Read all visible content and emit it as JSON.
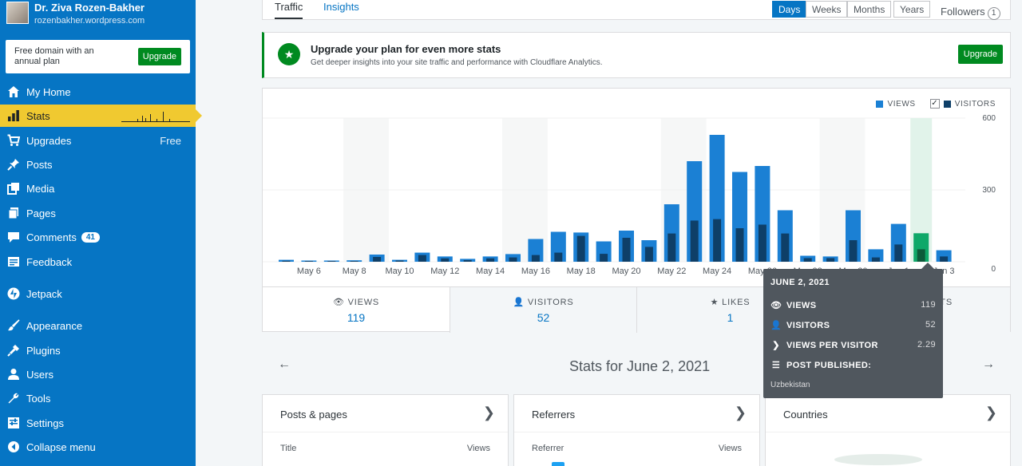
{
  "site": {
    "name": "Dr. Ziva Rozen-Bakher",
    "url": "rozenbakher.wordpress.com"
  },
  "promo": {
    "text": "Free domain with an annual plan",
    "button": "Upgrade"
  },
  "sidebar": {
    "items": [
      {
        "label": "My Home",
        "icon": "home-icon"
      },
      {
        "label": "Stats",
        "icon": "stats-icon"
      },
      {
        "label": "Upgrades",
        "icon": "cart-icon",
        "suffix": "Free"
      },
      {
        "label": "Posts",
        "icon": "pin-icon"
      },
      {
        "label": "Media",
        "icon": "media-icon"
      },
      {
        "label": "Pages",
        "icon": "pages-icon"
      },
      {
        "label": "Comments",
        "icon": "comment-icon",
        "badge": "41"
      },
      {
        "label": "Feedback",
        "icon": "feedback-icon"
      },
      {
        "label": "Jetpack",
        "icon": "jetpack-icon"
      },
      {
        "label": "Appearance",
        "icon": "brush-icon"
      },
      {
        "label": "Plugins",
        "icon": "plugin-icon"
      },
      {
        "label": "Users",
        "icon": "user-icon"
      },
      {
        "label": "Tools",
        "icon": "wrench-icon"
      },
      {
        "label": "Settings",
        "icon": "settings-icon"
      },
      {
        "label": "Collapse menu",
        "icon": "collapse-icon"
      }
    ]
  },
  "tabs": {
    "traffic": "Traffic",
    "insights": "Insights"
  },
  "periods": [
    "Days",
    "Weeks",
    "Months",
    "Years"
  ],
  "followers": {
    "label": "Followers",
    "count": "1"
  },
  "banner": {
    "title": "Upgrade your plan for even more stats",
    "subtitle": "Get deeper insights into your site traffic and performance with Cloudflare Analytics.",
    "button": "Upgrade"
  },
  "legend": {
    "views": "VIEWS",
    "visitors": "VISITORS"
  },
  "colors": {
    "views": "#1b80d4",
    "visitors": "#0e3f68",
    "selected": "#0fa869",
    "accent": "#0675c4",
    "sidebar": "#0675c4"
  },
  "chart_data": {
    "type": "bar",
    "categories": [
      "May 5",
      "May 6",
      "May 7",
      "May 8",
      "May 9",
      "May 10",
      "May 11",
      "May 12",
      "May 13",
      "May 14",
      "May 15",
      "May 16",
      "May 17",
      "May 18",
      "May 19",
      "May 20",
      "May 21",
      "May 22",
      "May 23",
      "May 24",
      "May 25",
      "May 26",
      "May 27",
      "May 28",
      "May 29",
      "May 30",
      "May 31",
      "Jun 1",
      "Jun 2",
      "Jun 3"
    ],
    "x_tick_labels": [
      "May 6",
      "May 8",
      "May 10",
      "May 12",
      "May 14",
      "May 16",
      "May 18",
      "May 20",
      "May 22",
      "May 24",
      "May 26",
      "May 28",
      "May 30",
      "Jun 1",
      "Jun 3"
    ],
    "series": [
      {
        "name": "VIEWS",
        "values": [
          8,
          5,
          5,
          6,
          30,
          8,
          38,
          22,
          12,
          22,
          32,
          95,
          125,
          122,
          85,
          130,
          90,
          240,
          420,
          530,
          375,
          400,
          215,
          25,
          22,
          215,
          52,
          158,
          119,
          48
        ]
      },
      {
        "name": "VISITORS",
        "values": [
          4,
          3,
          3,
          3,
          20,
          5,
          28,
          14,
          7,
          14,
          18,
          28,
          38,
          108,
          33,
          100,
          62,
          118,
          172,
          178,
          140,
          155,
          118,
          15,
          15,
          90,
          18,
          72,
          52,
          22
        ]
      }
    ],
    "ylim": [
      0,
      600
    ],
    "y_ticks": [
      0,
      300,
      600
    ],
    "selected_index": 28
  },
  "stat_tabs": [
    {
      "label": "VIEWS",
      "value": "119",
      "icon": "eye-icon"
    },
    {
      "label": "VISITORS",
      "value": "52",
      "icon": "user-icon"
    },
    {
      "label": "LIKES",
      "value": "1",
      "icon": "star-icon"
    },
    {
      "label": "COMMENTS",
      "value": "0",
      "icon": "comment-icon"
    }
  ],
  "tooltip": {
    "date": "JUNE 2, 2021",
    "rows": [
      {
        "label": "VIEWS",
        "value": "119",
        "icon": "eye-icon"
      },
      {
        "label": "VISITORS",
        "value": "52",
        "icon": "user-icon"
      },
      {
        "label": "VIEWS PER VISITOR",
        "value": "2.29",
        "icon": "chevron-icon"
      },
      {
        "label": "POST PUBLISHED:",
        "value": "",
        "icon": "list-icon"
      }
    ],
    "footer": "Uzbekistan"
  },
  "stats_for": "Stats for June 2, 2021",
  "modules": [
    {
      "title": "Posts & pages",
      "col1": "Title",
      "col2": "Views"
    },
    {
      "title": "Referrers",
      "col1": "Referrer",
      "col2": "Views"
    },
    {
      "title": "Countries",
      "col1": "",
      "col2": ""
    }
  ]
}
